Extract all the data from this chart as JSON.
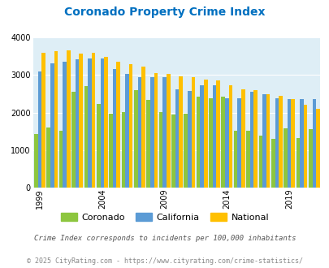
{
  "title": "Coronado Property Crime Index",
  "years": [
    1999,
    2000,
    2001,
    2002,
    2003,
    2004,
    2005,
    2006,
    2007,
    2008,
    2009,
    2010,
    2011,
    2012,
    2013,
    2014,
    2015,
    2016,
    2017,
    2018,
    2019,
    2020,
    2021
  ],
  "coronado": [
    1430,
    1610,
    1520,
    2550,
    2700,
    2230,
    1970,
    2020,
    2590,
    2340,
    2020,
    1950,
    1960,
    2430,
    2380,
    2420,
    1520,
    1520,
    1380,
    1290,
    1570,
    1310,
    1550
  ],
  "california": [
    3100,
    3310,
    3350,
    3430,
    3440,
    3440,
    3150,
    3030,
    2940,
    2940,
    2950,
    2610,
    2570,
    2730,
    2720,
    2390,
    2380,
    2560,
    2490,
    2380,
    2350,
    2360,
    2360
  ],
  "national": [
    3600,
    3640,
    3650,
    3580,
    3600,
    3480,
    3360,
    3300,
    3230,
    3050,
    3040,
    2960,
    2940,
    2880,
    2860,
    2720,
    2620,
    2590,
    2490,
    2450,
    2360,
    2200,
    2090
  ],
  "coronado_color": "#8dc63f",
  "california_color": "#5b9bd5",
  "national_color": "#ffc000",
  "bg_color": "#deeef6",
  "ylim": [
    0,
    4000
  ],
  "yticks": [
    0,
    1000,
    2000,
    3000,
    4000
  ],
  "xlabel_ticks": [
    1999,
    2004,
    2009,
    2014,
    2019
  ],
  "legend_labels": [
    "Coronado",
    "California",
    "National"
  ],
  "footnote1": "Crime Index corresponds to incidents per 100,000 inhabitants",
  "footnote2": "© 2025 CityRating.com - https://www.cityrating.com/crime-statistics/",
  "title_color": "#0070c0",
  "footnote1_color": "#555555",
  "footnote2_color": "#888888"
}
